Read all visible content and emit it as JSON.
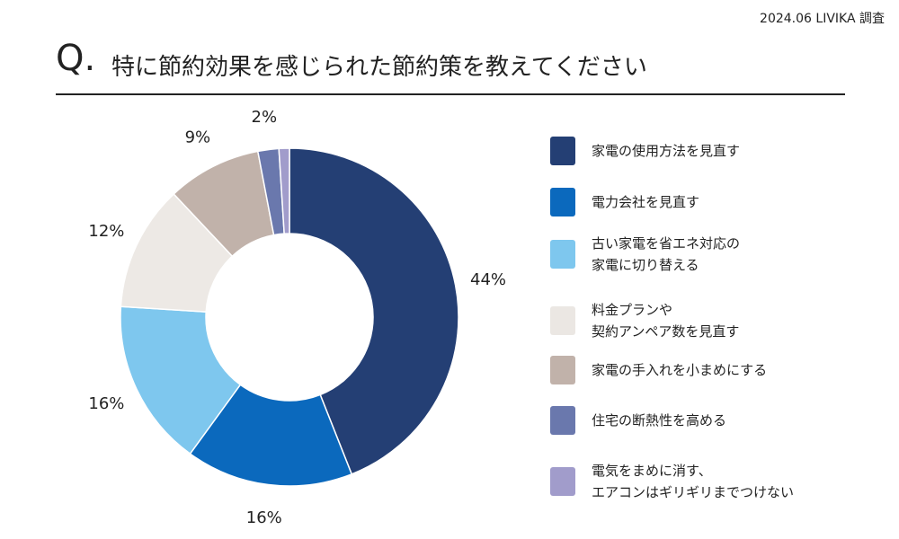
{
  "source": "2024.06 LIVIKA 調査",
  "header": {
    "q_mark": "Q.",
    "title": "特に節約効果を感じられた節約策を教えてください"
  },
  "chart_data": {
    "type": "pie",
    "title": "特に節約効果を感じられた節約策を教えてください",
    "donut": true,
    "slices": [
      {
        "label": "家電の使用方法を見直す",
        "value": 44,
        "value_label": "44%",
        "color": "#243f74"
      },
      {
        "label": "電力会社を見直す",
        "value": 16,
        "value_label": "16%",
        "color": "#0b69bd"
      },
      {
        "label": "古い家電を省エネ対応の\n家電に切り替える",
        "value": 16,
        "value_label": "16%",
        "color": "#7ec7ee"
      },
      {
        "label": "料金プランや\n契約アンペア数を見直す",
        "value": 12,
        "value_label": "12%",
        "color": "#ede9e5"
      },
      {
        "label": "家電の手入れを小まめにする",
        "value": 9,
        "value_label": "9%",
        "color": "#c1b2aa"
      },
      {
        "label": "住宅の断熱性を高める",
        "value": 2,
        "value_label": "2%",
        "color": "#6a78ad"
      },
      {
        "label": "電気をまめに消す、\nエアコンはギリギリまでつけない",
        "value": 1,
        "value_label": "",
        "color": "#a19ccb"
      }
    ],
    "legend_position": "right"
  }
}
